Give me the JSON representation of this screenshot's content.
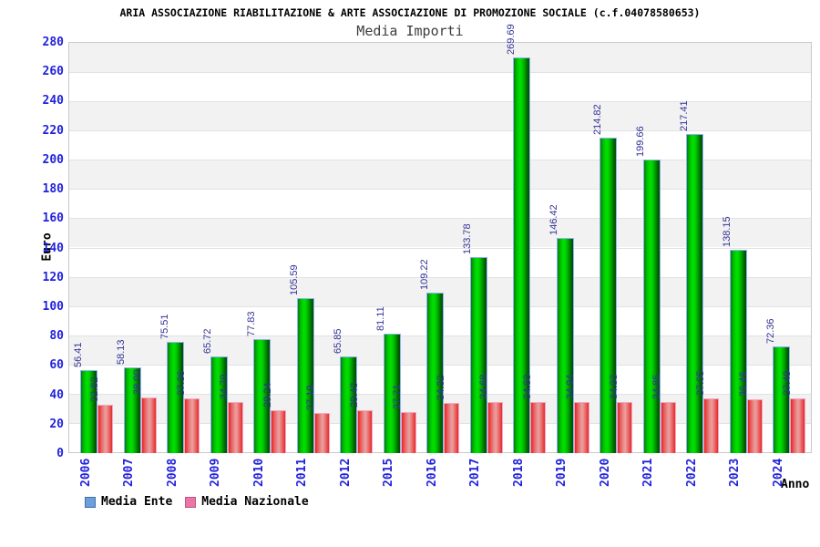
{
  "header": {
    "title": "ARIA ASSOCIAZIONE RIABILITAZIONE & ARTE ASSOCIAZIONE DI PROMOZIONE SOCIALE (c.f.04078580653)",
    "subtitle": "Media Importi"
  },
  "axes": {
    "y_title": "Euro",
    "x_title": "Anno",
    "y_min": 0,
    "y_max": 280,
    "y_step": 20
  },
  "colors": {
    "series_ente": "#00cc00",
    "series_nazionale": "#ee3333",
    "legend_ente_swatch": "#6f9fd8",
    "legend_ente_border": "#3e6fae",
    "legend_nazionale_swatch": "#ec74a7",
    "legend_nazionale_border": "#bb5585",
    "axis_text": "#2222dd",
    "value_text": "#333399",
    "band_gray": "#f2f2f2",
    "gridline": "#e2e2e2"
  },
  "chart_data": {
    "type": "bar",
    "title": "Media Importi",
    "categories": [
      "2006",
      "2007",
      "2008",
      "2009",
      "2010",
      "2011",
      "2012",
      "2015",
      "2016",
      "2017",
      "2018",
      "2019",
      "2020",
      "2021",
      "2022",
      "2023",
      "2024"
    ],
    "series": [
      {
        "name": "Media Ente",
        "values": [
          56.41,
          58.13,
          75.51,
          65.72,
          77.83,
          105.59,
          65.85,
          81.11,
          109.22,
          133.78,
          269.69,
          146.42,
          214.82,
          199.66,
          217.41,
          138.15,
          72.36
        ]
      },
      {
        "name": "Media Nazionale",
        "values": [
          32.82,
          38.0,
          37.36,
          34.79,
          29.24,
          27.19,
          29.43,
          27.71,
          34.32,
          34.68,
          34.83,
          34.94,
          34.83,
          34.85,
          37.05,
          36.46,
          37.49
        ]
      }
    ],
    "xlabel": "Anno",
    "ylabel": "Euro",
    "ylim": [
      0,
      280
    ],
    "grid": "horizontal-bands-alternating",
    "legend_position": "bottom-left",
    "value_labels": "rotated-90-above-bars"
  }
}
